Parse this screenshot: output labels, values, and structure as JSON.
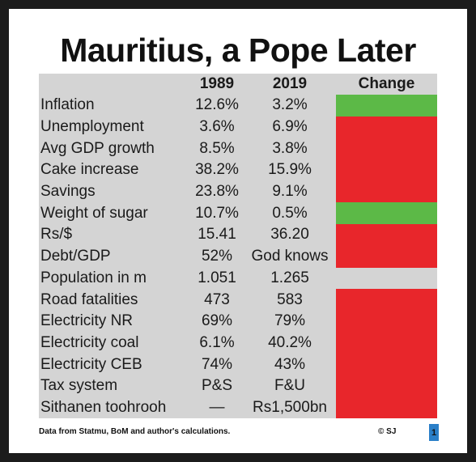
{
  "title": "Mauritius, a Pope Later",
  "headers": {
    "year1": "1989",
    "year2": "2019",
    "change": "Change"
  },
  "rows": [
    {
      "label": "Inflation",
      "v1989": "12.6%",
      "v2019": "3.2%",
      "change": "green"
    },
    {
      "label": "Unemployment",
      "v1989": "3.6%",
      "v2019": "6.9%",
      "change": "red"
    },
    {
      "label": "Avg GDP growth",
      "v1989": "8.5%",
      "v2019": "3.8%",
      "change": "red"
    },
    {
      "label": "Cake increase",
      "v1989": "38.2%",
      "v2019": "15.9%",
      "change": "red"
    },
    {
      "label": "Savings",
      "v1989": "23.8%",
      "v2019": "9.1%",
      "change": "red"
    },
    {
      "label": "Weight of sugar",
      "v1989": "10.7%",
      "v2019": "0.5%",
      "change": "green"
    },
    {
      "label": "Rs/$",
      "v1989": "15.41",
      "v2019": "36.20",
      "change": "red"
    },
    {
      "label": "Debt/GDP",
      "v1989": "52%",
      "v2019": "God knows",
      "change": "red"
    },
    {
      "label": "Population in m",
      "v1989": "1.051",
      "v2019": "1.265",
      "change": "none"
    },
    {
      "label": "Road fatalities",
      "v1989": "473",
      "v2019": "583",
      "change": "red"
    },
    {
      "label": "Electricity NR",
      "v1989": "69%",
      "v2019": "79%",
      "change": "red"
    },
    {
      "label": "Electricity coal",
      "v1989": "6.1%",
      "v2019": "40.2%",
      "change": "red"
    },
    {
      "label": "Electricity CEB",
      "v1989": "74%",
      "v2019": "43%",
      "change": "red"
    },
    {
      "label": "Tax system",
      "v1989": "P&S",
      "v2019": "F&U",
      "change": "red"
    },
    {
      "label": "Sithanen toohrooh",
      "v1989": "—",
      "v2019": "Rs1,500bn",
      "change": "red"
    }
  ],
  "colors": {
    "green": "#5cb947",
    "red": "#e8262b",
    "table_bg": "#d4d4d4"
  },
  "footer": {
    "source": "Data from Statmu, BoM and author's calculations.",
    "credit": "© SJ",
    "page": "1"
  }
}
